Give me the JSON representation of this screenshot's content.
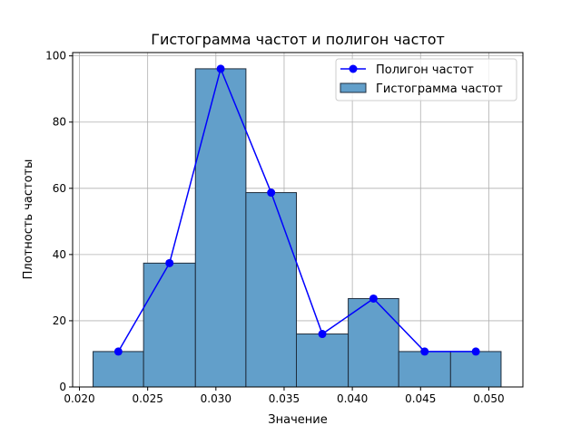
{
  "chart_data": {
    "type": "bar",
    "title": "Гистограмма частот и полигон частот",
    "xlabel": "Значение",
    "ylabel": "Плотность частоты",
    "xlim": [
      0.0195,
      0.0525
    ],
    "ylim": [
      0,
      101
    ],
    "grid": true,
    "legend_position": "top-right",
    "x_ticks": [
      0.02,
      0.025,
      0.03,
      0.035,
      0.04,
      0.045,
      0.05
    ],
    "x_tick_labels": [
      "0.020",
      "0.025",
      "0.030",
      "0.035",
      "0.040",
      "0.045",
      "0.050"
    ],
    "y_ticks": [
      0,
      20,
      40,
      60,
      80,
      100
    ],
    "y_tick_labels": [
      "0",
      "20",
      "40",
      "60",
      "80",
      "100"
    ],
    "histogram": {
      "name": "Гистограмма частот",
      "color": "#5b9bd5",
      "fill": "#629fca",
      "edge": "#1f2d3d",
      "bin_edges": [
        0.021,
        0.0247,
        0.0285,
        0.0322,
        0.0359,
        0.0397,
        0.0434,
        0.0472,
        0.0509
      ],
      "values": [
        10.7,
        37.4,
        96.1,
        58.7,
        16.0,
        26.7,
        10.7,
        10.7
      ]
    },
    "polygon": {
      "name": "Полигон частот",
      "color": "#0000ff",
      "x": [
        0.02285,
        0.0266,
        0.03035,
        0.03405,
        0.0378,
        0.04155,
        0.0453,
        0.04905
      ],
      "y": [
        10.7,
        37.4,
        96.1,
        58.7,
        16.0,
        26.7,
        10.7,
        10.7
      ]
    }
  }
}
